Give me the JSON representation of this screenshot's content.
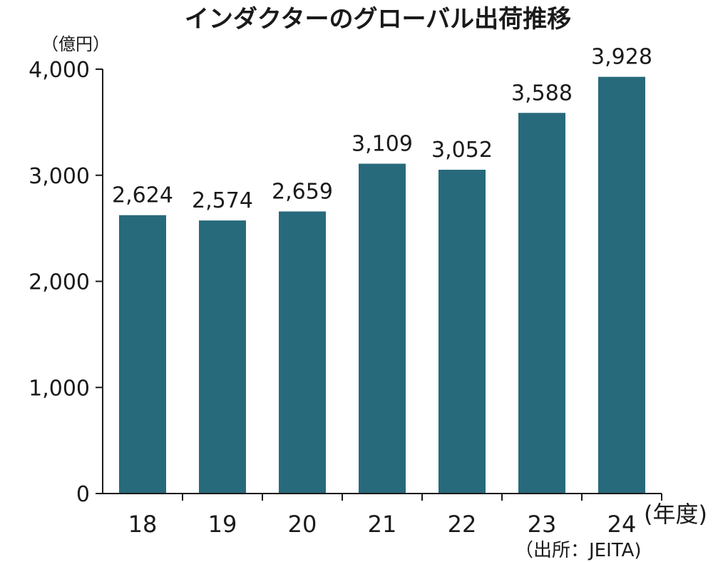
{
  "chart_data": {
    "type": "bar",
    "title": "インダクターのグローバル出荷推移",
    "ylabel": "（億円）",
    "xlabel": "(年度)",
    "source": "（出所：JEITA)",
    "categories": [
      "18",
      "19",
      "20",
      "21",
      "22",
      "23",
      "24"
    ],
    "values": [
      2624,
      2574,
      2659,
      3109,
      3052,
      3588,
      3928
    ],
    "data_labels": [
      "2,624",
      "2,574",
      "2,659",
      "3,109",
      "3,052",
      "3,588",
      "3,928"
    ],
    "yticks": [
      "0",
      "1,000",
      "2,000",
      "3,000",
      "4,000"
    ],
    "ylim": [
      0,
      4000
    ],
    "grid": false,
    "legend": "none",
    "bar_color": "#276a7b"
  }
}
